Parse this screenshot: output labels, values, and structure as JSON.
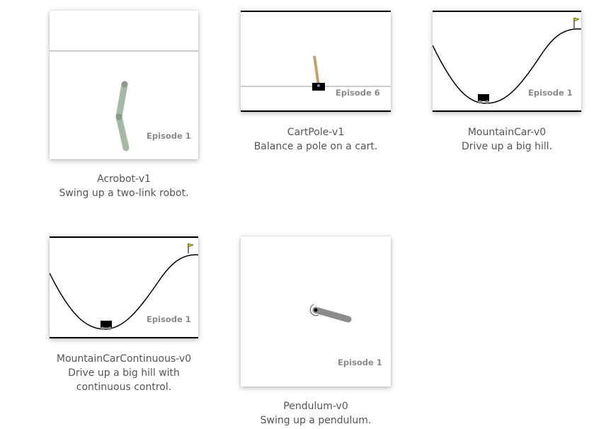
{
  "environments": [
    {
      "name": "Acrobot-v1",
      "description": "Swing up a two-link robot.",
      "episode": "Episode 1"
    },
    {
      "name": "CartPole-v1",
      "description": "Balance a pole on a cart.",
      "episode": "Episode 6"
    },
    {
      "name": "MountainCar-v0",
      "description": "Drive up a big hill.",
      "episode": "Episode 1"
    },
    {
      "name": "MountainCarContinuous-v0",
      "description": "Drive up a big hill with",
      "description_line2": "continuous control.",
      "episode": "Episode 1"
    },
    {
      "name": "Pendulum-v0",
      "description": "Swing up a pendulum.",
      "episode": "Episode 1"
    }
  ],
  "colors": {
    "line": "#000000",
    "track": "#9a9a9a",
    "link": "#a6b8a6",
    "joint": "#8a9a8a",
    "pole": "#c9a06a",
    "pendulum": "#8c8c8c"
  }
}
